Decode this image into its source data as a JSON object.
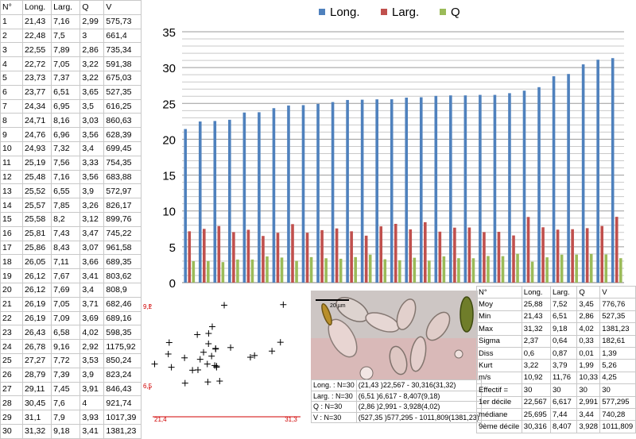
{
  "table": {
    "headers": [
      "N°",
      "Long.",
      "Larg.",
      "Q",
      "V"
    ],
    "rows": [
      [
        "1",
        "21,43",
        "7,16",
        "2,99",
        "575,73"
      ],
      [
        "2",
        "22,48",
        "7,5",
        "3",
        "661,4"
      ],
      [
        "3",
        "22,55",
        "7,89",
        "2,86",
        "735,34"
      ],
      [
        "4",
        "22,72",
        "7,05",
        "3,22",
        "591,38"
      ],
      [
        "5",
        "23,73",
        "7,37",
        "3,22",
        "675,03"
      ],
      [
        "6",
        "23,77",
        "6,51",
        "3,65",
        "527,35"
      ],
      [
        "7",
        "24,34",
        "6,95",
        "3,5",
        "616,25"
      ],
      [
        "8",
        "24,71",
        "8,16",
        "3,03",
        "860,63"
      ],
      [
        "9",
        "24,76",
        "6,96",
        "3,56",
        "628,39"
      ],
      [
        "10",
        "24,93",
        "7,32",
        "3,4",
        "699,45"
      ],
      [
        "11",
        "25,19",
        "7,56",
        "3,33",
        "754,35"
      ],
      [
        "12",
        "25,48",
        "7,16",
        "3,56",
        "683,88"
      ],
      [
        "13",
        "25,52",
        "6,55",
        "3,9",
        "572,97"
      ],
      [
        "14",
        "25,57",
        "7,85",
        "3,26",
        "826,17"
      ],
      [
        "15",
        "25,58",
        "8,2",
        "3,12",
        "899,76"
      ],
      [
        "16",
        "25,81",
        "7,43",
        "3,47",
        "745,22"
      ],
      [
        "17",
        "25,86",
        "8,43",
        "3,07",
        "961,58"
      ],
      [
        "18",
        "26,05",
        "7,11",
        "3,66",
        "689,35"
      ],
      [
        "19",
        "26,12",
        "7,67",
        "3,41",
        "803,62"
      ],
      [
        "20",
        "26,12",
        "7,69",
        "3,4",
        "808,9"
      ],
      [
        "21",
        "26,19",
        "7,05",
        "3,71",
        "682,46"
      ],
      [
        "22",
        "26,19",
        "7,09",
        "3,69",
        "689,16"
      ],
      [
        "23",
        "26,43",
        "6,58",
        "4,02",
        "598,35"
      ],
      [
        "24",
        "26,78",
        "9,16",
        "2,92",
        "1175,92"
      ],
      [
        "25",
        "27,27",
        "7,72",
        "3,53",
        "850,24"
      ],
      [
        "26",
        "28,79",
        "7,39",
        "3,9",
        "823,24"
      ],
      [
        "27",
        "29,11",
        "7,45",
        "3,91",
        "846,43"
      ],
      [
        "28",
        "30,45",
        "7,6",
        "4",
        "921,74"
      ],
      [
        "29",
        "31,1",
        "7,9",
        "3,93",
        "1017,39"
      ],
      [
        "30",
        "31,32",
        "9,18",
        "3,41",
        "1381,23"
      ]
    ]
  },
  "chart_data": [
    {
      "type": "bar",
      "title": "",
      "categories": [
        "1",
        "2",
        "3",
        "4",
        "5",
        "6",
        "7",
        "8",
        "9",
        "10",
        "11",
        "12",
        "13",
        "14",
        "15",
        "16",
        "17",
        "18",
        "19",
        "20",
        "21",
        "22",
        "23",
        "24",
        "25",
        "26",
        "27",
        "28",
        "29",
        "30"
      ],
      "series": [
        {
          "name": "Long.",
          "color": "#4f81bd",
          "values": [
            21.43,
            22.48,
            22.55,
            22.72,
            23.73,
            23.77,
            24.34,
            24.71,
            24.76,
            24.93,
            25.19,
            25.48,
            25.52,
            25.57,
            25.58,
            25.81,
            25.86,
            26.05,
            26.12,
            26.12,
            26.19,
            26.19,
            26.43,
            26.78,
            27.27,
            28.79,
            29.11,
            30.45,
            31.1,
            31.32
          ]
        },
        {
          "name": "Larg.",
          "color": "#c0504d",
          "values": [
            7.16,
            7.5,
            7.89,
            7.05,
            7.37,
            6.51,
            6.95,
            8.16,
            6.96,
            7.32,
            7.56,
            7.16,
            6.55,
            7.85,
            8.2,
            7.43,
            8.43,
            7.11,
            7.67,
            7.69,
            7.05,
            7.09,
            6.58,
            9.16,
            7.72,
            7.39,
            7.45,
            7.6,
            7.9,
            9.18
          ]
        },
        {
          "name": "Q",
          "color": "#9bbb59",
          "values": [
            2.99,
            3,
            2.86,
            3.22,
            3.22,
            3.65,
            3.5,
            3.03,
            3.56,
            3.4,
            3.33,
            3.56,
            3.9,
            3.26,
            3.12,
            3.47,
            3.07,
            3.66,
            3.41,
            3.4,
            3.71,
            3.69,
            4.02,
            2.92,
            3.53,
            3.9,
            3.91,
            4,
            3.93,
            3.41
          ]
        }
      ],
      "xlabel": "",
      "ylabel": "",
      "ylim": [
        0,
        35
      ],
      "yticks": [
        "0",
        "5",
        "10",
        "15",
        "20",
        "25",
        "30",
        "35"
      ],
      "grid": true,
      "legend": "top"
    },
    {
      "type": "scatter",
      "title": "",
      "x_label_min": "21,4",
      "x_label_max": "31,3",
      "y_label_min": "6,5",
      "y_label_max": "9,2",
      "xlim": [
        21.4,
        31.3
      ],
      "ylim": [
        6.5,
        9.2
      ],
      "marker": "+",
      "points": [
        [
          21.43,
          7.16
        ],
        [
          22.48,
          7.5
        ],
        [
          22.55,
          7.89
        ],
        [
          22.72,
          7.05
        ],
        [
          23.73,
          7.37
        ],
        [
          23.77,
          6.51
        ],
        [
          24.34,
          6.95
        ],
        [
          24.71,
          8.16
        ],
        [
          24.76,
          6.96
        ],
        [
          24.93,
          7.32
        ],
        [
          25.19,
          7.56
        ],
        [
          25.48,
          7.16
        ],
        [
          25.52,
          6.55
        ],
        [
          25.57,
          7.85
        ],
        [
          25.58,
          8.2
        ],
        [
          25.81,
          7.43
        ],
        [
          25.86,
          8.43
        ],
        [
          26.05,
          7.11
        ],
        [
          26.12,
          7.67
        ],
        [
          26.12,
          7.69
        ],
        [
          26.19,
          7.05
        ],
        [
          26.19,
          7.09
        ],
        [
          26.43,
          6.58
        ],
        [
          26.78,
          9.16
        ],
        [
          27.27,
          7.72
        ],
        [
          28.79,
          7.39
        ],
        [
          29.11,
          7.45
        ],
        [
          30.45,
          7.6
        ],
        [
          31.1,
          7.9
        ],
        [
          31.32,
          9.18
        ]
      ]
    }
  ],
  "photo": {
    "scale_label": "20 µm"
  },
  "summary": [
    [
      "Long. : N=30",
      "(21,43 )22,567 - 30,316(31,32)"
    ],
    [
      "Larg. : N=30",
      "(6,51 )6,617 - 8,407(9,18)"
    ],
    [
      "Q : N=30",
      "(2,86 )2,991 - 3,928(4,02)"
    ],
    [
      "V : N=30",
      "(527,35 )577,295 - 1011,809(1381,23)"
    ]
  ],
  "stats": {
    "headers": [
      "N°",
      "Long.",
      "Larg.",
      "Q",
      "V"
    ],
    "rows": [
      [
        "Moy",
        "25,88",
        "7,52",
        "3,45",
        "776,76"
      ],
      [
        "Min",
        "21,43",
        "6,51",
        "2,86",
        "527,35"
      ],
      [
        "Max",
        "31,32",
        "9,18",
        "4,02",
        "1381,23"
      ],
      [
        "Sigma",
        "2,37",
        "0,64",
        "0,33",
        "182,61"
      ],
      [
        "Diss",
        "0,6",
        "0,87",
        "0,01",
        "1,39"
      ],
      [
        "Kurt",
        "3,22",
        "3,79",
        "1,99",
        "5,26"
      ],
      [
        "m/s",
        "10,92",
        "11,76",
        "10,33",
        "4,25"
      ],
      [
        "Effectif =",
        "30",
        "30",
        "30",
        "30"
      ],
      [
        "1er décile",
        "22,567",
        "6,617",
        "2,991",
        "577,295"
      ],
      [
        "médiane",
        "25,695",
        "7,44",
        "3,44",
        "740,28"
      ],
      [
        "9ème décile",
        "30,316",
        "8,407",
        "3,928",
        "1011,809"
      ]
    ]
  }
}
